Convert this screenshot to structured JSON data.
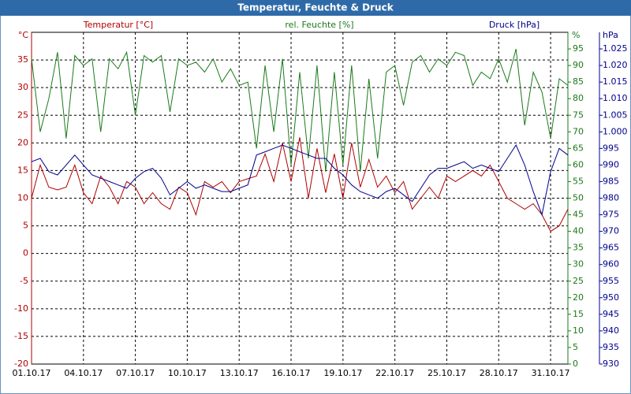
{
  "chart_data": {
    "type": "line",
    "title": "Temperatur, Feuchte & Druck",
    "ylabel": "°C",
    "y2label": "%",
    "y3label": "hPa",
    "xlim": [
      0,
      31
    ],
    "xticks": [
      {
        "value": 0,
        "label": "01.10.17"
      },
      {
        "value": 3,
        "label": "04.10.17"
      },
      {
        "value": 6,
        "label": "07.10.17"
      },
      {
        "value": 9,
        "label": "10.10.17"
      },
      {
        "value": 12,
        "label": "13.10.17"
      },
      {
        "value": 15,
        "label": "16.10.17"
      },
      {
        "value": 18,
        "label": "19.10.17"
      },
      {
        "value": 21,
        "label": "22.10.17"
      },
      {
        "value": 24,
        "label": "25.10.17"
      },
      {
        "value": 27,
        "label": "28.10.17"
      },
      {
        "value": 30,
        "label": "31.10.17"
      }
    ],
    "ylim": [
      -20,
      40
    ],
    "yticks": [
      -20,
      -15,
      -10,
      -5,
      0,
      5,
      10,
      15,
      20,
      25,
      30,
      35
    ],
    "y2lim": [
      0,
      100
    ],
    "y2ticks": [
      0,
      5,
      10,
      15,
      20,
      25,
      30,
      35,
      40,
      45,
      50,
      55,
      60,
      65,
      70,
      75,
      80,
      85,
      90,
      95
    ],
    "y3lim": [
      930,
      1030
    ],
    "y3ticks": [
      930,
      935,
      940,
      945,
      950,
      955,
      960,
      965,
      970,
      975,
      980,
      985,
      990,
      995,
      {
        "value": 1000,
        "label": "1.000"
      },
      {
        "value": 1005,
        "label": "1.005"
      },
      {
        "value": 1010,
        "label": "1.010"
      },
      {
        "value": 1015,
        "label": "1.015"
      },
      {
        "value": 1020,
        "label": "1.020"
      },
      {
        "value": 1025,
        "label": "1.025"
      }
    ],
    "grid": true,
    "x": [
      0,
      0.5,
      1,
      1.5,
      2,
      2.5,
      3,
      3.5,
      4,
      4.5,
      5,
      5.5,
      6,
      6.5,
      7,
      7.5,
      8,
      8.5,
      9,
      9.5,
      10,
      10.5,
      11,
      11.5,
      12,
      12.5,
      13,
      13.5,
      14,
      14.5,
      15,
      15.5,
      16,
      16.5,
      17,
      17.5,
      18,
      18.5,
      19,
      19.5,
      20,
      20.5,
      21,
      21.5,
      22,
      22.5,
      23,
      23.5,
      24,
      24.5,
      25,
      25.5,
      26,
      26.5,
      27,
      27.5,
      28,
      28.5,
      29,
      29.5,
      30,
      30.5,
      31
    ],
    "series": [
      {
        "name": "Temperatur [°C]",
        "color": "#b00000",
        "axis": "y",
        "values": [
          10,
          16,
          12,
          11.5,
          12,
          16,
          11,
          9,
          14,
          12,
          9,
          13,
          12,
          9,
          11,
          9,
          8,
          12,
          11,
          7,
          13,
          12,
          13,
          11,
          13,
          13.5,
          14,
          18,
          13,
          20,
          13,
          21,
          10,
          19,
          11,
          18,
          10,
          20,
          12,
          17,
          12,
          14,
          11,
          13,
          8,
          10,
          12,
          10,
          14,
          13,
          14,
          15,
          14,
          16,
          13,
          10,
          9,
          8,
          9,
          7,
          4,
          5,
          8
        ]
      },
      {
        "name": "rel. Feuchte [%]",
        "color": "#1a7a1a",
        "axis": "y2",
        "values": [
          92,
          70,
          80,
          94,
          68,
          93,
          90,
          92,
          70,
          92,
          89,
          94,
          75,
          93,
          91,
          93,
          76,
          92,
          90,
          91,
          88,
          92,
          85,
          89,
          84,
          85,
          65,
          90,
          70,
          92,
          60,
          88,
          62,
          90,
          58,
          88,
          60,
          90,
          58,
          86,
          62,
          88,
          90,
          78,
          91,
          93,
          88,
          92,
          90,
          94,
          93,
          84,
          88,
          86,
          92,
          85,
          95,
          72,
          88,
          82,
          68,
          86,
          84
        ]
      },
      {
        "name": "Druck [hPa]",
        "color": "#00008b",
        "axis": "y3",
        "values": [
          991,
          992,
          988,
          987,
          990,
          993,
          990,
          987,
          986,
          985,
          984,
          983,
          986,
          988,
          989,
          986,
          981,
          983,
          985,
          983,
          984,
          983,
          982,
          982,
          983,
          984,
          993,
          994,
          995,
          996,
          995,
          994,
          993,
          992,
          992,
          989,
          987,
          984,
          982,
          981,
          980,
          982,
          983,
          981,
          979,
          983,
          987,
          989,
          989,
          990,
          991,
          989,
          990,
          989,
          988,
          992,
          996,
          990,
          982,
          975,
          988,
          995,
          993
        ]
      }
    ]
  }
}
